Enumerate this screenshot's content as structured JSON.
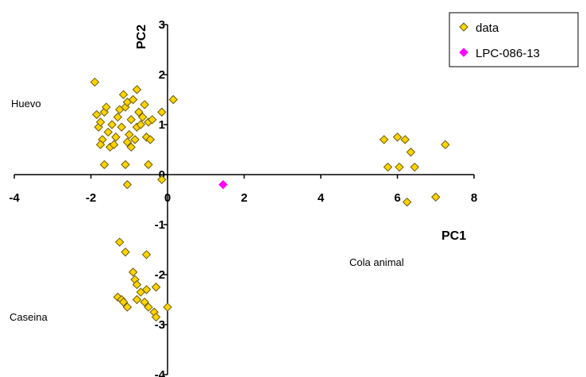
{
  "chart_data": {
    "type": "scatter",
    "xlabel": "PC1",
    "ylabel": "PC2",
    "xlim": [
      -4,
      8
    ],
    "ylim": [
      -4,
      3
    ],
    "x_ticks": [
      "-4",
      "-2",
      "0",
      "2",
      "4",
      "6",
      "8"
    ],
    "y_ticks": [
      "3",
      "2",
      "1",
      "0",
      "-1",
      "-2",
      "-3",
      "-4"
    ],
    "legend_position": "top-right",
    "annotations": [
      "Huevo",
      "Caseina",
      "Cola animal"
    ],
    "series": [
      {
        "name": "data",
        "marker": "diamond",
        "color": "#ffd400",
        "edge_color": "#6b5a00",
        "points": [
          [
            -1.9,
            1.85
          ],
          [
            -1.85,
            1.2
          ],
          [
            -1.8,
            0.95
          ],
          [
            -1.75,
            1.05
          ],
          [
            -1.7,
            0.7
          ],
          [
            -1.65,
            1.25
          ],
          [
            -1.6,
            1.35
          ],
          [
            -1.55,
            0.85
          ],
          [
            -1.5,
            0.55
          ],
          [
            -1.45,
            1.0
          ],
          [
            -1.4,
            0.6
          ],
          [
            -1.35,
            0.75
          ],
          [
            -1.3,
            1.15
          ],
          [
            -1.25,
            1.3
          ],
          [
            -1.2,
            0.95
          ],
          [
            -1.15,
            1.6
          ],
          [
            -1.1,
            1.35
          ],
          [
            -1.05,
            1.45
          ],
          [
            -1.05,
            0.65
          ],
          [
            -1.0,
            0.8
          ],
          [
            -0.95,
            1.1
          ],
          [
            -0.95,
            0.55
          ],
          [
            -0.9,
            1.5
          ],
          [
            -0.85,
            0.7
          ],
          [
            -0.8,
            1.7
          ],
          [
            -0.8,
            0.95
          ],
          [
            -0.75,
            1.25
          ],
          [
            -0.7,
            1.0
          ],
          [
            -0.65,
            1.15
          ],
          [
            -0.6,
            1.4
          ],
          [
            -0.55,
            0.75
          ],
          [
            -0.5,
            1.05
          ],
          [
            -0.45,
            0.7
          ],
          [
            -0.4,
            1.1
          ],
          [
            -0.15,
            1.25
          ],
          [
            0.15,
            1.5
          ],
          [
            -1.75,
            0.6
          ],
          [
            -1.65,
            0.2
          ],
          [
            -1.1,
            0.2
          ],
          [
            -0.5,
            0.2
          ],
          [
            -1.05,
            -0.2
          ],
          [
            -0.15,
            -0.1
          ],
          [
            5.65,
            0.7
          ],
          [
            5.75,
            0.15
          ],
          [
            6.0,
            0.75
          ],
          [
            6.05,
            0.15
          ],
          [
            6.2,
            0.7
          ],
          [
            6.35,
            0.45
          ],
          [
            6.45,
            0.15
          ],
          [
            7.0,
            -0.45
          ],
          [
            7.25,
            0.6
          ],
          [
            6.25,
            -0.55
          ],
          [
            -1.25,
            -1.35
          ],
          [
            -1.1,
            -1.55
          ],
          [
            -0.55,
            -1.6
          ],
          [
            -0.9,
            -1.95
          ],
          [
            -0.85,
            -2.1
          ],
          [
            -0.8,
            -2.2
          ],
          [
            -0.7,
            -2.35
          ],
          [
            -0.55,
            -2.3
          ],
          [
            -0.3,
            -2.25
          ],
          [
            -1.3,
            -2.45
          ],
          [
            -1.2,
            -2.5
          ],
          [
            -1.15,
            -2.55
          ],
          [
            -1.05,
            -2.65
          ],
          [
            -0.8,
            -2.5
          ],
          [
            -0.6,
            -2.55
          ],
          [
            -0.5,
            -2.65
          ],
          [
            -0.35,
            -2.75
          ],
          [
            0.0,
            -2.65
          ],
          [
            -0.3,
            -2.85
          ]
        ]
      },
      {
        "name": "LPC-086-13",
        "marker": "diamond",
        "color": "#ff00ff",
        "edge_color": "#ff00ff",
        "points": [
          [
            1.45,
            -0.2
          ]
        ]
      }
    ]
  }
}
